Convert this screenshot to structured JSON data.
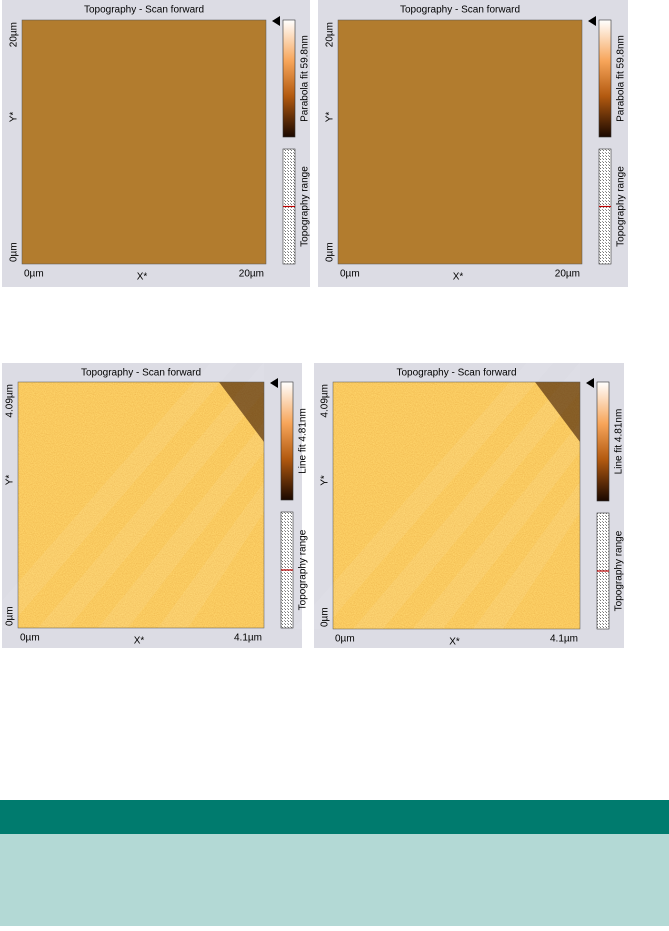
{
  "panels": [
    {
      "title": "Topography - Scan forward",
      "y_max_label": "20µm",
      "y_axis_label": "Y*",
      "y_min_label": "0µm",
      "x_min_label": "0µm",
      "x_axis_label": "X*",
      "x_max_label": "20µm",
      "colorbar_label": "Parabola fit 59.8nm",
      "range_label": "Topography range"
    },
    {
      "title": "Topography - Scan forward",
      "y_max_label": "20µm",
      "y_axis_label": "Y*",
      "y_min_label": "0µm",
      "x_min_label": "0µm",
      "x_axis_label": "X*",
      "x_max_label": "20µm",
      "colorbar_label": "Parabola fit 59.8nm",
      "range_label": "Topography range"
    },
    {
      "title": "Topography - Scan forward",
      "y_max_label": "4.09µm",
      "y_axis_label": "Y*",
      "y_min_label": "0µm",
      "x_min_label": "0µm",
      "x_axis_label": "X*",
      "x_max_label": "4.1µm",
      "colorbar_label": "Line fit 4.81nm",
      "range_label": "Topography range"
    },
    {
      "title": "Topography - Scan forward",
      "y_max_label": "4.09µm",
      "y_axis_label": "Y*",
      "y_min_label": "0µm",
      "x_min_label": "0µm",
      "x_axis_label": "X*",
      "x_max_label": "4.1µm",
      "colorbar_label": "Line fit 4.81nm",
      "range_label": "Topography range"
    }
  ]
}
